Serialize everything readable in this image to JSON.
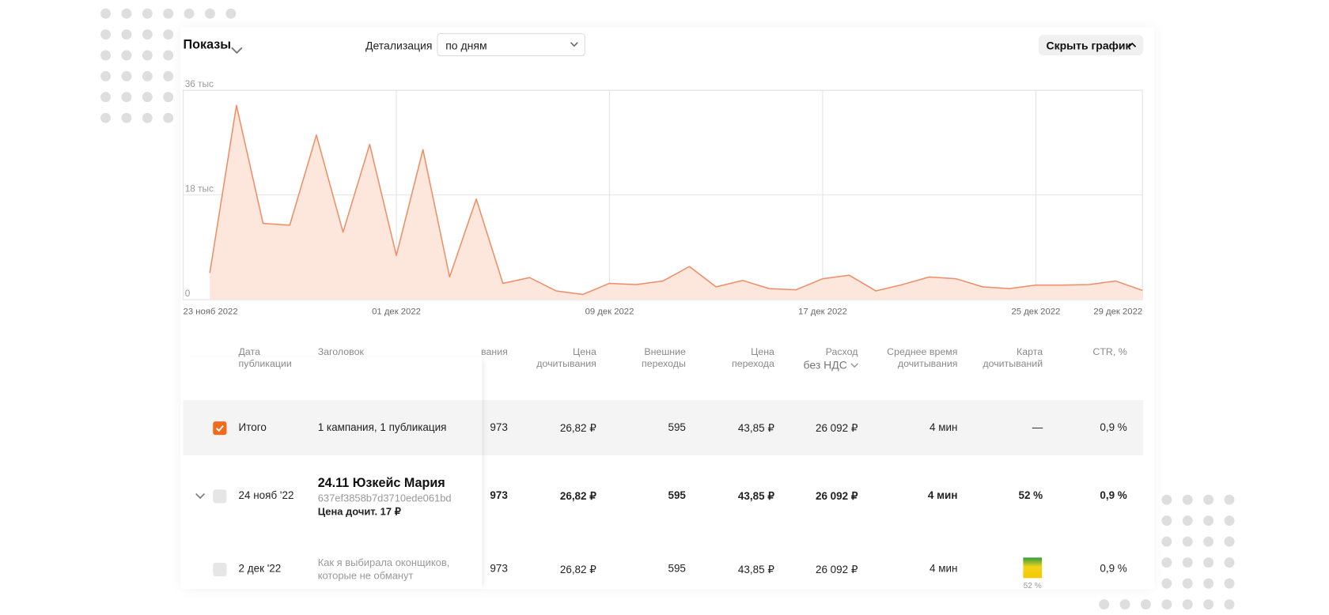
{
  "header": {
    "metric": "Показы",
    "detail_label": "Детализация",
    "detail_value": "по дням",
    "hide_button": "Скрыть график"
  },
  "chart_data": {
    "type": "area",
    "color": "#ef8c64",
    "fill": "#fde6dc",
    "grid": true,
    "x": [
      1,
      2,
      3,
      4,
      5,
      6,
      7,
      8,
      9,
      10,
      11,
      12,
      13,
      14,
      15,
      16,
      17,
      18,
      19,
      20,
      21,
      22,
      23,
      24,
      25,
      26,
      27,
      28,
      29,
      30,
      31,
      32,
      33,
      34,
      35,
      36
    ],
    "values": [
      4600,
      33400,
      13100,
      12800,
      28300,
      11600,
      26700,
      7600,
      25800,
      3900,
      17300,
      2800,
      3800,
      1500,
      900,
      2800,
      2600,
      3200,
      5700,
      2200,
      3300,
      1900,
      1700,
      3600,
      4200,
      1500,
      2600,
      3900,
      3600,
      2200,
      1900,
      2500,
      2500,
      2600,
      3200,
      1600
    ],
    "xlim": [
      0,
      36
    ],
    "xticks": [
      {
        "value": 0,
        "label": "23 нояб 2022"
      },
      {
        "value": 8,
        "label": "01 дек 2022"
      },
      {
        "value": 16,
        "label": "09 дек 2022"
      },
      {
        "value": 24,
        "label": "17 дек 2022"
      },
      {
        "value": 32,
        "label": "25 дек 2022"
      },
      {
        "value": 36,
        "label": "29 дек 2022"
      }
    ],
    "ylim": [
      0,
      36000
    ],
    "yticks": [
      0,
      {
        "value": 18000,
        "label": "18 тыс"
      },
      {
        "value": 36000,
        "label": "36 тыс"
      }
    ]
  },
  "table": {
    "headers": [
      "Дата публикации",
      "Заголовок",
      "вания",
      "Цена дочитывания",
      "Внешние переходы",
      "Цена перехода",
      "Расход",
      "Среднее время дочитывания",
      "Карта дочитываний",
      "CTR, %"
    ],
    "expense_note": "без НДС",
    "rows": [
      {
        "checked": true,
        "date": "Итого",
        "title": "1 кампания, 1 публикация",
        "cells": [
          "973",
          "26,82 ₽",
          "595",
          "43,85 ₽",
          "26 092 ₽",
          "4 мин",
          "—",
          "0,9 %"
        ]
      },
      {
        "checked": false,
        "date": "24 нояб '22",
        "title": "24.11 Юзкейс Мария",
        "id": "637ef3858b7d3710ede061bd",
        "price": "Цена дочит. 17 ₽",
        "cells": [
          "973",
          "26,82 ₽",
          "595",
          "43,85 ₽",
          "26 092 ₽",
          "4 мин",
          "52 %",
          "0,9 %"
        ]
      },
      {
        "checked": false,
        "date": "2 дек '22",
        "title": "Как я выбирала оконщиков, которые не обманут",
        "cells": [
          "973",
          "26,82 ₽",
          "595",
          "43,85 ₽",
          "26 092 ₽",
          "4 мин",
          "52 %",
          "0,9 %"
        ]
      }
    ]
  }
}
